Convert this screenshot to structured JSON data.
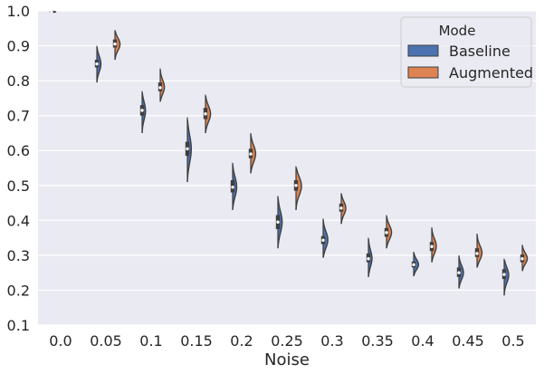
{
  "chart_data": {
    "type": "violin",
    "xlabel": "Noise",
    "ylabel": "",
    "ylim": [
      0.1,
      1.0
    ],
    "y_ticks": [
      "0.1",
      "0.2",
      "0.3",
      "0.4",
      "0.5",
      "0.6",
      "0.7",
      "0.8",
      "0.9",
      "1.0"
    ],
    "categories": [
      "0.0",
      "0.05",
      "0.1",
      "0.15",
      "0.2",
      "0.25",
      "0.3",
      "0.35",
      "0.4",
      "0.45",
      "0.5"
    ],
    "grid": true,
    "legend": {
      "title": "Mode",
      "position": "top-right"
    },
    "series": [
      {
        "name": "Baseline",
        "color": "#4C72B0",
        "violins": [
          {
            "median": 0.997,
            "q1": 0.996,
            "q3": 0.999,
            "min": 0.995,
            "max": 1.0,
            "width": 0.5
          },
          {
            "median": 0.848,
            "q1": 0.838,
            "q3": 0.86,
            "min": 0.795,
            "max": 0.9,
            "width": 0.5
          },
          {
            "median": 0.715,
            "q1": 0.7,
            "q3": 0.73,
            "min": 0.65,
            "max": 0.77,
            "width": 0.42
          },
          {
            "median": 0.605,
            "q1": 0.585,
            "q3": 0.625,
            "min": 0.51,
            "max": 0.695,
            "width": 0.48
          },
          {
            "median": 0.495,
            "q1": 0.48,
            "q3": 0.515,
            "min": 0.43,
            "max": 0.565,
            "width": 0.5
          },
          {
            "median": 0.395,
            "q1": 0.375,
            "q3": 0.415,
            "min": 0.32,
            "max": 0.47,
            "width": 0.52
          },
          {
            "median": 0.343,
            "q1": 0.332,
            "q3": 0.355,
            "min": 0.293,
            "max": 0.405,
            "width": 0.58
          },
          {
            "median": 0.29,
            "q1": 0.28,
            "q3": 0.305,
            "min": 0.238,
            "max": 0.35,
            "width": 0.44
          },
          {
            "median": 0.273,
            "q1": 0.265,
            "q3": 0.282,
            "min": 0.24,
            "max": 0.31,
            "width": 0.6
          },
          {
            "median": 0.25,
            "q1": 0.238,
            "q3": 0.265,
            "min": 0.205,
            "max": 0.3,
            "width": 0.56
          },
          {
            "median": 0.245,
            "q1": 0.232,
            "q3": 0.26,
            "min": 0.185,
            "max": 0.29,
            "width": 0.56
          }
        ]
      },
      {
        "name": "Augmented",
        "color": "#DD8452",
        "violins": [
          null,
          {
            "median": 0.905,
            "q1": 0.895,
            "q3": 0.918,
            "min": 0.86,
            "max": 0.945,
            "width": 0.62
          },
          {
            "median": 0.78,
            "q1": 0.77,
            "q3": 0.795,
            "min": 0.74,
            "max": 0.835,
            "width": 0.52
          },
          {
            "median": 0.705,
            "q1": 0.69,
            "q3": 0.722,
            "min": 0.65,
            "max": 0.76,
            "width": 0.62
          },
          {
            "median": 0.59,
            "q1": 0.578,
            "q3": 0.605,
            "min": 0.535,
            "max": 0.65,
            "width": 0.6
          },
          {
            "median": 0.5,
            "q1": 0.485,
            "q3": 0.515,
            "min": 0.43,
            "max": 0.555,
            "width": 0.68
          },
          {
            "median": 0.435,
            "q1": 0.425,
            "q3": 0.448,
            "min": 0.39,
            "max": 0.478,
            "width": 0.56
          },
          {
            "median": 0.365,
            "q1": 0.353,
            "q3": 0.378,
            "min": 0.32,
            "max": 0.415,
            "width": 0.62
          },
          {
            "median": 0.325,
            "q1": 0.312,
            "q3": 0.338,
            "min": 0.28,
            "max": 0.38,
            "width": 0.56
          },
          {
            "median": 0.305,
            "q1": 0.295,
            "q3": 0.32,
            "min": 0.265,
            "max": 0.362,
            "width": 0.62
          },
          {
            "median": 0.29,
            "q1": 0.28,
            "q3": 0.302,
            "min": 0.255,
            "max": 0.33,
            "width": 0.62
          }
        ]
      }
    ]
  }
}
